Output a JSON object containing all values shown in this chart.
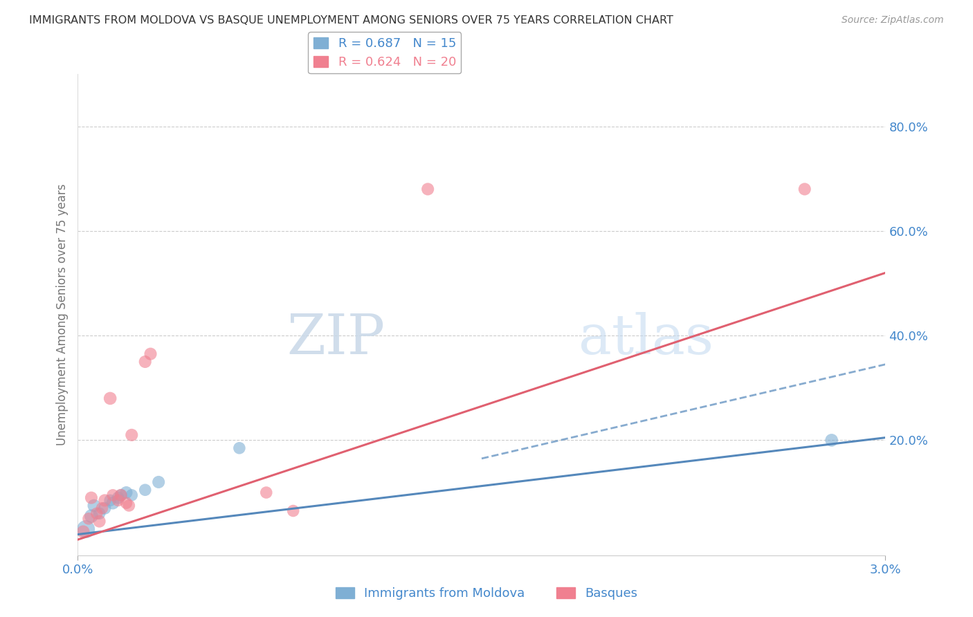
{
  "title": "IMMIGRANTS FROM MOLDOVA VS BASQUE UNEMPLOYMENT AMONG SENIORS OVER 75 YEARS CORRELATION CHART",
  "source": "Source: ZipAtlas.com",
  "ylabel": "Unemployment Among Seniors over 75 years",
  "xlabel_moldova": "Immigrants from Moldova",
  "xlabel_basques": "Basques",
  "xlim": [
    0.0,
    0.03
  ],
  "ylim": [
    -0.02,
    0.9
  ],
  "yticks": [
    0.0,
    0.2,
    0.4,
    0.6,
    0.8
  ],
  "ytick_labels": [
    "",
    "20.0%",
    "40.0%",
    "60.0%",
    "80.0%"
  ],
  "xticks": [
    0.0,
    0.03
  ],
  "xtick_labels": [
    "0.0%",
    "3.0%"
  ],
  "legend_r1": "R = 0.687   N = 15",
  "legend_r2": "R = 0.624   N = 20",
  "moldova_color": "#7fafd4",
  "basques_color": "#f08090",
  "moldova_line_color": "#5588bb",
  "basques_line_color": "#e06070",
  "axis_label_color": "#4488cc",
  "watermark_zip": "ZIP",
  "watermark_atlas": "atlas",
  "moldova_points": [
    [
      0.0003,
      0.03
    ],
    [
      0.0005,
      0.055
    ],
    [
      0.0006,
      0.075
    ],
    [
      0.0008,
      0.06
    ],
    [
      0.001,
      0.07
    ],
    [
      0.0012,
      0.085
    ],
    [
      0.0013,
      0.08
    ],
    [
      0.0015,
      0.09
    ],
    [
      0.0016,
      0.095
    ],
    [
      0.0018,
      0.1
    ],
    [
      0.002,
      0.095
    ],
    [
      0.0025,
      0.105
    ],
    [
      0.003,
      0.12
    ],
    [
      0.006,
      0.185
    ],
    [
      0.028,
      0.2
    ]
  ],
  "basques_points": [
    [
      0.0002,
      0.025
    ],
    [
      0.0004,
      0.05
    ],
    [
      0.0005,
      0.09
    ],
    [
      0.0007,
      0.06
    ],
    [
      0.0008,
      0.045
    ],
    [
      0.0009,
      0.07
    ],
    [
      0.001,
      0.085
    ],
    [
      0.0012,
      0.28
    ],
    [
      0.0013,
      0.095
    ],
    [
      0.0015,
      0.085
    ],
    [
      0.0016,
      0.095
    ],
    [
      0.0018,
      0.08
    ],
    [
      0.0019,
      0.075
    ],
    [
      0.002,
      0.21
    ],
    [
      0.0025,
      0.35
    ],
    [
      0.0027,
      0.365
    ],
    [
      0.007,
      0.1
    ],
    [
      0.008,
      0.065
    ],
    [
      0.013,
      0.68
    ],
    [
      0.027,
      0.68
    ]
  ],
  "moldova_sizes": [
    350,
    200,
    180,
    160,
    170,
    160,
    180,
    170,
    160,
    170,
    160,
    160,
    170,
    160,
    180
  ],
  "basques_sizes": [
    180,
    160,
    170,
    160,
    170,
    160,
    170,
    180,
    160,
    160,
    170,
    160,
    160,
    170,
    170,
    170,
    160,
    160,
    170,
    170
  ],
  "moldova_line": [
    [
      0.0,
      0.02
    ],
    [
      0.03,
      0.205
    ]
  ],
  "basques_line": [
    [
      0.0,
      0.01
    ],
    [
      0.03,
      0.52
    ]
  ],
  "moldova_dash_line": [
    [
      0.015,
      0.165
    ],
    [
      0.03,
      0.345
    ]
  ]
}
